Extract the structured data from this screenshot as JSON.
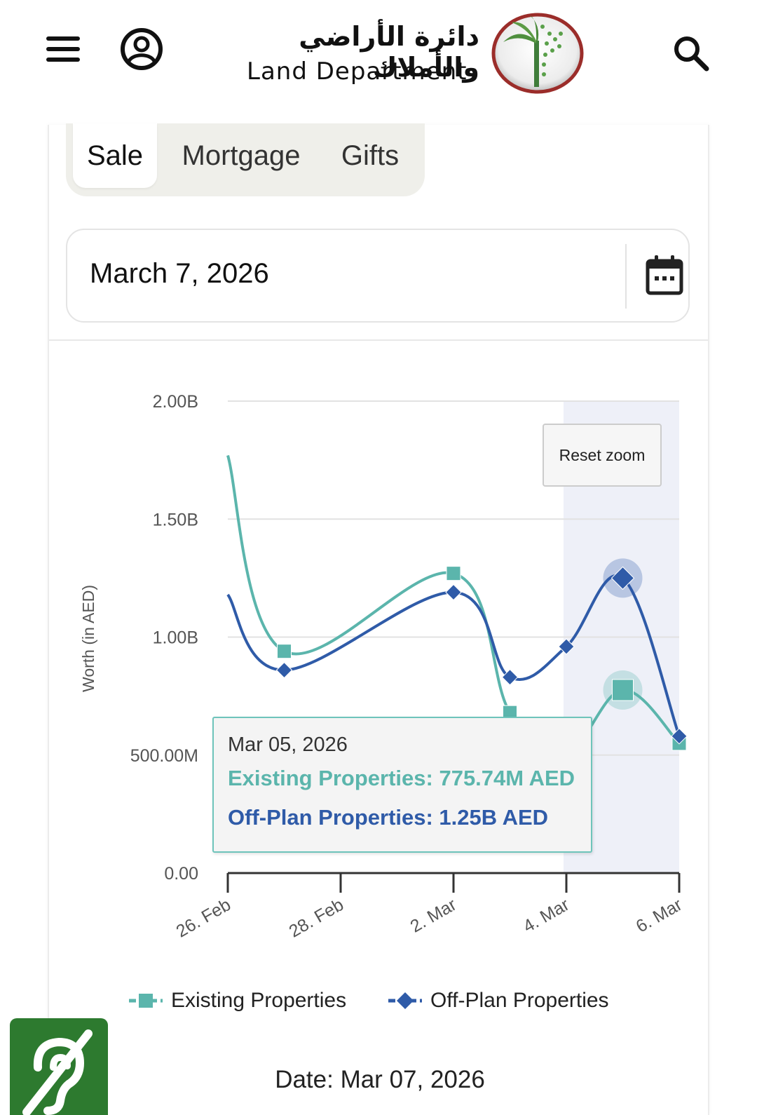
{
  "header": {
    "logo_arabic": "دائرة الأراضي والأملاك",
    "logo_english": "Land Department",
    "icons": {
      "menu": "menu-icon",
      "user": "user-circle-icon",
      "search": "search-icon",
      "emblem": "palm-tree-emblem"
    }
  },
  "tabs": [
    {
      "label": "Sale",
      "active": true
    },
    {
      "label": "Mortgage",
      "active": false
    },
    {
      "label": "Gifts",
      "active": false
    }
  ],
  "date_picker": {
    "value": "March 7, 2026",
    "icon": "calendar-icon"
  },
  "reset_zoom_label": "Reset zoom",
  "chart_data": {
    "type": "line",
    "title": "",
    "xlabel": "",
    "ylabel": "Worth (in AED)",
    "ylim": [
      0,
      2000000000
    ],
    "y_ticks": [
      {
        "value": 2000000000,
        "label": "2.00B"
      },
      {
        "value": 1500000000,
        "label": "1.50B"
      },
      {
        "value": 1000000000,
        "label": "1.00B"
      },
      {
        "value": 500000000,
        "label": "500.00M"
      },
      {
        "value": 0,
        "label": "0.00"
      }
    ],
    "x_range": [
      0,
      8
    ],
    "x_ticks": [
      {
        "day": 0,
        "label": "26. Feb"
      },
      {
        "day": 2,
        "label": "28. Feb"
      },
      {
        "day": 4,
        "label": "2. Mar"
      },
      {
        "day": 6,
        "label": "4. Mar"
      },
      {
        "day": 8,
        "label": "6. Mar"
      }
    ],
    "highlight_band": [
      5.95,
      8
    ],
    "grid": true,
    "legend_position": "bottom",
    "series": [
      {
        "name": "Existing Properties",
        "color": "#5bb5ac",
        "marker": "square",
        "points": [
          {
            "day": 0,
            "value": 1770000000
          },
          {
            "day": 1,
            "value": 940000000
          },
          {
            "day": 4,
            "value": 1270000000
          },
          {
            "day": 5,
            "value": 680000000
          },
          {
            "day": 6,
            "value": 510000000
          },
          {
            "day": 7,
            "value": 775740000
          },
          {
            "day": 8,
            "value": 550000000
          }
        ]
      },
      {
        "name": "Off-Plan Properties",
        "color": "#2f5ba8",
        "marker": "diamond",
        "points": [
          {
            "day": 0,
            "value": 1180000000
          },
          {
            "day": 1,
            "value": 860000000
          },
          {
            "day": 4,
            "value": 1190000000
          },
          {
            "day": 5,
            "value": 830000000
          },
          {
            "day": 6,
            "value": 960000000
          },
          {
            "day": 7,
            "value": 1250000000
          },
          {
            "day": 8,
            "value": 580000000
          }
        ]
      }
    ],
    "highlighted_point_day": 7
  },
  "tooltip": {
    "date": "Mar 05, 2026",
    "existing": "Existing Properties: 775.74M AED",
    "offplan": "Off-Plan Properties: 1.25B AED"
  },
  "legend": [
    {
      "label": "Existing Properties",
      "color": "#5bb5ac"
    },
    {
      "label": "Off-Plan Properties",
      "color": "#2f5ba8"
    }
  ],
  "date_caption": "Date: Mar 07, 2026",
  "accessibility": {
    "icon": "hearing-assist-icon"
  }
}
